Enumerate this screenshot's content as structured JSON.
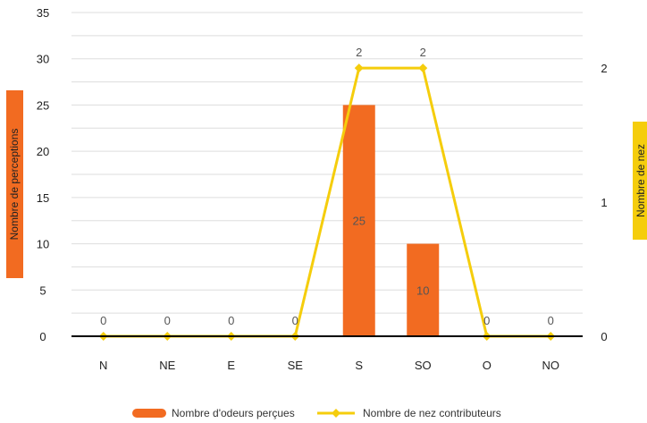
{
  "chart_data": {
    "type": "bar+line",
    "categories": [
      "N",
      "NE",
      "E",
      "SE",
      "S",
      "SO",
      "O",
      "NO"
    ],
    "series": [
      {
        "name": "Nombre d'odeurs perçues",
        "type": "bar",
        "axis": "left",
        "values": [
          0,
          0,
          0,
          0,
          25,
          10,
          0,
          0
        ]
      },
      {
        "name": "Nombre de nez contributeurs",
        "type": "line",
        "axis": "right",
        "values": [
          0,
          0,
          0,
          0,
          2,
          2,
          0,
          0
        ]
      }
    ],
    "ylabel_left": "Nombre de perceptions",
    "ylabel_right": "Nombre de nez",
    "ylim_left": [
      0,
      35
    ],
    "yticks_left": [
      0,
      5,
      10,
      15,
      20,
      25,
      30,
      35
    ],
    "ylim_right": [
      0,
      2.414
    ],
    "yticks_right": [
      0,
      1,
      2
    ],
    "grid": true,
    "legend_position": "bottom",
    "colors": {
      "bar": "#f26b21",
      "line": "#f5cd0c",
      "grid": "#dddddd",
      "axis": "#000000"
    }
  }
}
